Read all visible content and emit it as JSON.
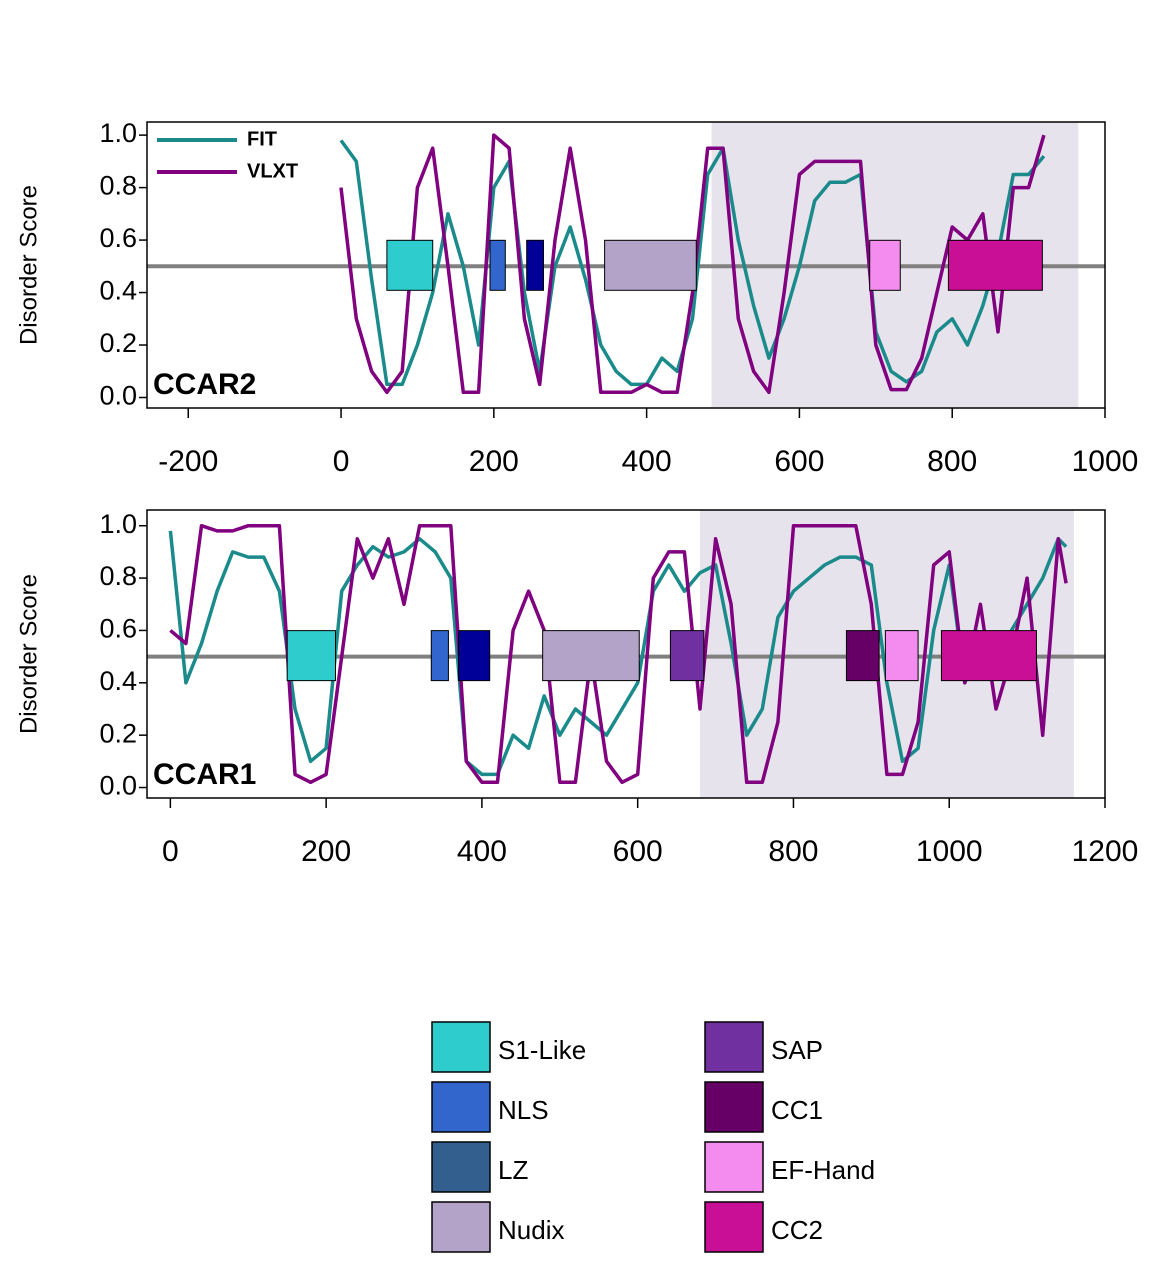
{
  "chart_data": [
    {
      "type": "line",
      "title": "CCAR2",
      "ylabel": "Disorder Score",
      "legend": "upper left",
      "xlim": [
        -254,
        1000
      ],
      "ylim": [
        -0.04,
        1.05
      ],
      "xticks": [
        -200,
        0,
        200,
        400,
        600,
        800,
        1000
      ],
      "yticks": [
        {
          "value": 0,
          "label": "0.0"
        },
        0.2,
        0.4,
        0.6,
        0.8,
        {
          "value": 1,
          "label": "1.0"
        }
      ],
      "reference_line": 0.5,
      "shaded": [
        485,
        965
      ],
      "x": [
        0,
        20,
        40,
        60,
        80,
        100,
        120,
        140,
        160,
        180,
        200,
        220,
        240,
        260,
        280,
        300,
        320,
        340,
        360,
        380,
        400,
        420,
        440,
        460,
        480,
        500,
        520,
        540,
        560,
        580,
        600,
        620,
        640,
        660,
        680,
        700,
        720,
        740,
        760,
        780,
        800,
        820,
        840,
        860,
        880,
        900,
        920
      ],
      "series": [
        {
          "name": "FIT",
          "color": "#1a8a8a",
          "values": [
            0.98,
            0.9,
            0.45,
            0.05,
            0.05,
            0.2,
            0.4,
            0.7,
            0.5,
            0.2,
            0.8,
            0.9,
            0.4,
            0.1,
            0.5,
            0.65,
            0.45,
            0.2,
            0.1,
            0.05,
            0.05,
            0.15,
            0.1,
            0.3,
            0.85,
            0.95,
            0.6,
            0.35,
            0.15,
            0.3,
            0.5,
            0.75,
            0.82,
            0.82,
            0.85,
            0.25,
            0.1,
            0.06,
            0.1,
            0.25,
            0.3,
            0.2,
            0.35,
            0.55,
            0.85,
            0.85,
            0.92
          ]
        },
        {
          "name": "VLXT",
          "color": "#800080",
          "values": [
            0.8,
            0.3,
            0.1,
            0.02,
            0.1,
            0.8,
            0.95,
            0.5,
            0.02,
            0.02,
            1.0,
            0.95,
            0.3,
            0.05,
            0.6,
            0.95,
            0.6,
            0.02,
            0.02,
            0.02,
            0.05,
            0.02,
            0.02,
            0.4,
            0.95,
            0.95,
            0.3,
            0.1,
            0.02,
            0.4,
            0.85,
            0.9,
            0.9,
            0.9,
            0.9,
            0.2,
            0.03,
            0.03,
            0.15,
            0.4,
            0.65,
            0.6,
            0.7,
            0.25,
            0.8,
            0.8,
            1.0
          ]
        }
      ],
      "domains": [
        {
          "start": 60,
          "end": 120,
          "color": "#2ecccc"
        },
        {
          "start": 195,
          "end": 215,
          "color": "#3366cc"
        },
        {
          "start": 243,
          "end": 265,
          "color": "#000099"
        },
        {
          "start": 345,
          "end": 465,
          "color": "#b3a3c8"
        },
        {
          "start": 692,
          "end": 732,
          "color": "#f48cf0"
        },
        {
          "start": 795,
          "end": 918,
          "color": "#c80f96"
        }
      ]
    },
    {
      "type": "line",
      "title": "CCAR1",
      "ylabel": "Disorder Score",
      "xlim": [
        -30,
        1200
      ],
      "ylim": [
        -0.04,
        1.06
      ],
      "xticks": [
        0,
        200,
        400,
        600,
        800,
        1000,
        1200
      ],
      "yticks": [
        {
          "value": 0,
          "label": "0.0"
        },
        0.2,
        0.4,
        0.6,
        0.8,
        {
          "value": 1,
          "label": "1.0"
        }
      ],
      "reference_line": 0.5,
      "shaded": [
        680,
        1160
      ],
      "x": [
        0,
        20,
        40,
        60,
        80,
        100,
        120,
        140,
        160,
        180,
        200,
        220,
        240,
        260,
        280,
        300,
        320,
        340,
        360,
        380,
        400,
        420,
        440,
        460,
        480,
        500,
        520,
        540,
        560,
        580,
        600,
        620,
        640,
        660,
        680,
        700,
        720,
        740,
        760,
        780,
        800,
        820,
        840,
        860,
        880,
        900,
        920,
        940,
        960,
        980,
        1000,
        1020,
        1040,
        1060,
        1080,
        1100,
        1120,
        1140,
        1150
      ],
      "series": [
        {
          "name": "FIT",
          "color": "#1a8a8a",
          "values": [
            0.98,
            0.4,
            0.55,
            0.75,
            0.9,
            0.88,
            0.88,
            0.75,
            0.3,
            0.1,
            0.15,
            0.75,
            0.85,
            0.92,
            0.88,
            0.9,
            0.95,
            0.9,
            0.8,
            0.1,
            0.05,
            0.05,
            0.2,
            0.15,
            0.35,
            0.2,
            0.3,
            0.25,
            0.2,
            0.3,
            0.4,
            0.75,
            0.85,
            0.75,
            0.82,
            0.85,
            0.55,
            0.2,
            0.3,
            0.65,
            0.75,
            0.8,
            0.85,
            0.88,
            0.88,
            0.85,
            0.4,
            0.1,
            0.15,
            0.6,
            0.85,
            0.4,
            0.55,
            0.45,
            0.6,
            0.7,
            0.8,
            0.95,
            0.92
          ]
        },
        {
          "name": "VLXT",
          "color": "#800080",
          "values": [
            0.6,
            0.55,
            1.0,
            0.98,
            0.98,
            1.0,
            1.0,
            1.0,
            0.05,
            0.02,
            0.05,
            0.5,
            0.95,
            0.8,
            0.95,
            0.7,
            1.0,
            1.0,
            1.0,
            0.1,
            0.02,
            0.02,
            0.6,
            0.75,
            0.6,
            0.02,
            0.02,
            0.5,
            0.1,
            0.02,
            0.05,
            0.8,
            0.9,
            0.9,
            0.3,
            0.95,
            0.7,
            0.02,
            0.02,
            0.25,
            1.0,
            1.0,
            1.0,
            1.0,
            1.0,
            0.7,
            0.05,
            0.05,
            0.25,
            0.85,
            0.9,
            0.4,
            0.7,
            0.3,
            0.5,
            0.8,
            0.2,
            0.95,
            0.78
          ]
        }
      ],
      "domains": [
        {
          "start": 150,
          "end": 212,
          "color": "#2ecccc"
        },
        {
          "start": 335,
          "end": 357,
          "color": "#3366cc"
        },
        {
          "start": 370,
          "end": 410,
          "color": "#000099"
        },
        {
          "start": 478,
          "end": 602,
          "color": "#b3a3c8"
        },
        {
          "start": 642,
          "end": 685,
          "color": "#7030a0"
        },
        {
          "start": 868,
          "end": 910,
          "color": "#660066"
        },
        {
          "start": 918,
          "end": 960,
          "color": "#f48cf0"
        },
        {
          "start": 990,
          "end": 1112,
          "color": "#c80f96"
        }
      ]
    }
  ],
  "domain_legend": [
    {
      "name": "S1-Like",
      "color": "#2ecccc"
    },
    {
      "name": "NLS",
      "color": "#3366cc"
    },
    {
      "name": "LZ",
      "color": "#335f8f"
    },
    {
      "name": "Nudix",
      "color": "#b3a3c8"
    },
    {
      "name": "SAP",
      "color": "#7030a0"
    },
    {
      "name": "CC1",
      "color": "#660066"
    },
    {
      "name": "EF-Hand",
      "color": "#f48cf0"
    },
    {
      "name": "CC2",
      "color": "#c80f96"
    }
  ]
}
